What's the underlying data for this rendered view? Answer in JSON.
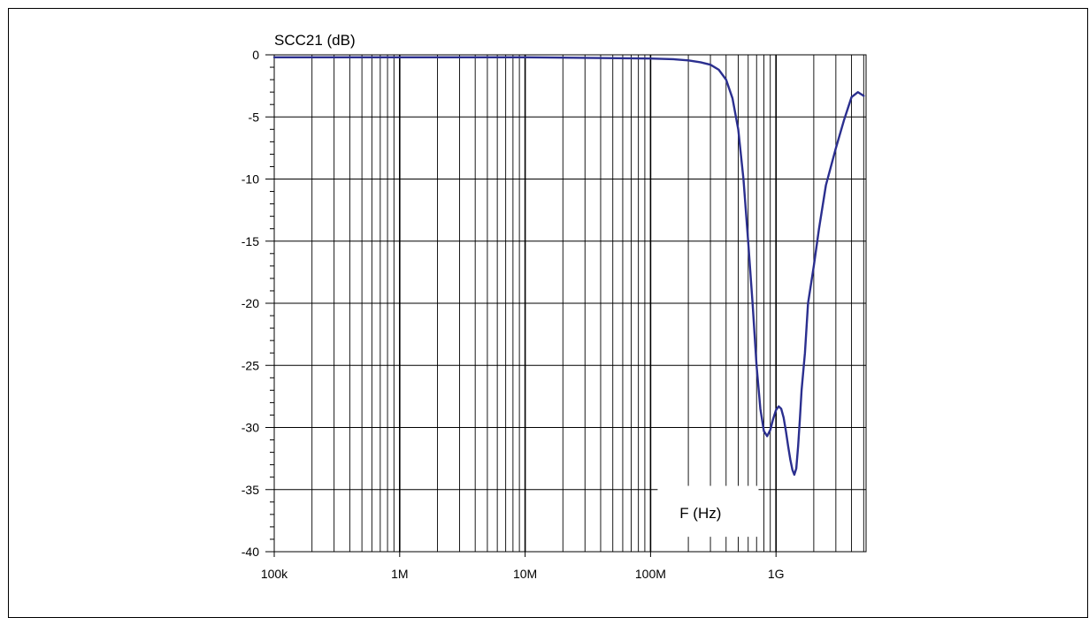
{
  "chart_data": {
    "type": "line",
    "title": "",
    "xlabel": "F (Hz)",
    "ylabel": "SCC21 (dB)",
    "x_scale": "log",
    "xlim": [
      100000,
      5000000000
    ],
    "ylim": [
      -40,
      0
    ],
    "grid": true,
    "x_ticks": [
      {
        "value": 100000,
        "label": "100k"
      },
      {
        "value": 1000000,
        "label": "1M"
      },
      {
        "value": 10000000,
        "label": "10M"
      },
      {
        "value": 100000000,
        "label": "100M"
      },
      {
        "value": 1000000000,
        "label": "1G"
      }
    ],
    "y_ticks": [
      {
        "value": 0,
        "label": "0"
      },
      {
        "value": -5,
        "label": "-5"
      },
      {
        "value": -10,
        "label": "-10"
      },
      {
        "value": -15,
        "label": "-15"
      },
      {
        "value": -20,
        "label": "-20"
      },
      {
        "value": -25,
        "label": "-25"
      },
      {
        "value": -30,
        "label": "-30"
      },
      {
        "value": -35,
        "label": "-35"
      },
      {
        "value": -40,
        "label": "-40"
      }
    ],
    "series": [
      {
        "color": "#2b2f8f",
        "x": [
          100000,
          1000000,
          10000000,
          100000000,
          150000000,
          200000000,
          250000000,
          300000000,
          350000000,
          400000000,
          450000000,
          500000000,
          550000000,
          600000000,
          650000000,
          700000000,
          750000000,
          800000000,
          850000000,
          900000000,
          950000000,
          1000000000,
          1050000000,
          1100000000,
          1150000000,
          1200000000,
          1250000000,
          1300000000,
          1350000000,
          1400000000,
          1450000000,
          1500000000,
          1550000000,
          1600000000,
          1700000000,
          1800000000,
          2000000000,
          2200000000,
          2500000000,
          3000000000,
          3500000000,
          4000000000,
          4500000000,
          5000000000
        ],
        "values": [
          -0.2,
          -0.2,
          -0.2,
          -0.3,
          -0.35,
          -0.45,
          -0.6,
          -0.8,
          -1.2,
          -2.0,
          -3.5,
          -6.0,
          -10.0,
          -15.0,
          -20.0,
          -25.0,
          -28.5,
          -30.3,
          -30.7,
          -30.2,
          -29.3,
          -28.6,
          -28.3,
          -28.5,
          -29.2,
          -30.3,
          -31.5,
          -32.6,
          -33.4,
          -33.8,
          -33.3,
          -31.5,
          -29.3,
          -27.0,
          -24.0,
          -20.0,
          -17.0,
          -14.0,
          -10.5,
          -7.5,
          -5.2,
          -3.4,
          -3.0,
          -3.3
        ]
      }
    ]
  }
}
